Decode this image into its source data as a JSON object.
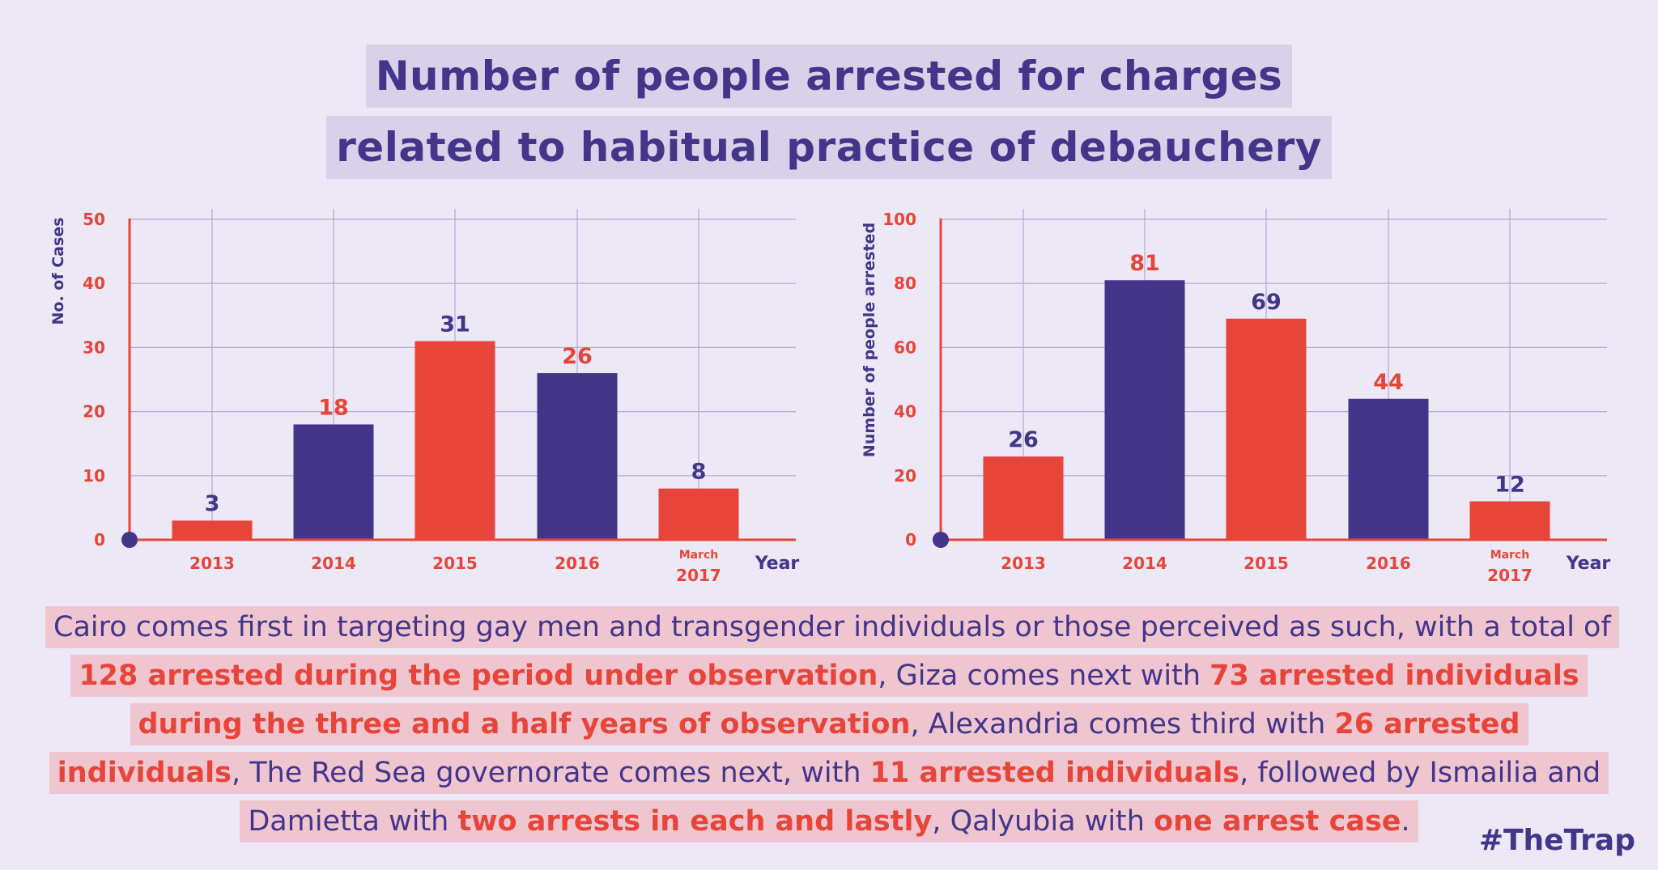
{
  "title_lines": [
    "Number of people arrested for charges",
    "related to habitual practice of debauchery"
  ],
  "chart_data": [
    {
      "type": "bar",
      "categories": [
        "2013",
        "2014",
        "2015",
        "2016",
        "2017"
      ],
      "category_prefix": [
        "",
        "",
        "",
        "",
        "March"
      ],
      "values": [
        3,
        18,
        31,
        26,
        8
      ],
      "bar_colors": [
        "#e8453a",
        "#43358a",
        "#e8453a",
        "#43358a",
        "#e8453a"
      ],
      "label_colors": [
        "#43358a",
        "#e8453a",
        "#43358a",
        "#e8453a",
        "#43358a"
      ],
      "ylabel": "No. of Cases",
      "xlabel": "Year",
      "ylim": [
        0,
        50
      ],
      "yticks": [
        0,
        10,
        20,
        30,
        40,
        50
      ],
      "grid": true
    },
    {
      "type": "bar",
      "categories": [
        "2013",
        "2014",
        "2015",
        "2016",
        "2017"
      ],
      "category_prefix": [
        "",
        "",
        "",
        "",
        "March"
      ],
      "values": [
        26,
        81,
        69,
        44,
        12
      ],
      "bar_colors": [
        "#e8453a",
        "#43358a",
        "#e8453a",
        "#43358a",
        "#e8453a"
      ],
      "label_colors": [
        "#43358a",
        "#e8453a",
        "#43358a",
        "#e8453a",
        "#43358a"
      ],
      "ylabel": "Number of people arrested",
      "xlabel": "Year",
      "ylim": [
        0,
        100
      ],
      "yticks": [
        0,
        20,
        40,
        60,
        80,
        100
      ],
      "grid": true
    }
  ],
  "description": {
    "t1": "Cairo comes first in targeting gay men and transgender individuals or those perceived as such, with a total of ",
    "r1": "128 arrested during the period under observation",
    "t2": ", Giza comes next with ",
    "r2": "73 arrested individuals during the three and a half years of observation",
    "t3": ", Alexandria comes third with ",
    "r3": "26 arrested individuals",
    "t4": ", The Red Sea governorate comes next, with ",
    "r4": "11 arrested individuals",
    "t5": ", followed by Ismailia and Damietta with ",
    "r5": "two arrests in each and lastly",
    "t6": ", Qalyubia with ",
    "r6": "one arrest case",
    "t7": "."
  },
  "hashtag": "#TheTrap",
  "colors": {
    "background": "#ede8f5",
    "primary": "#43358a",
    "accent": "#e8453a",
    "title_highlight": "#d9d0ea",
    "text_highlight": "#efc6d0",
    "grid": "#b4aad4"
  }
}
